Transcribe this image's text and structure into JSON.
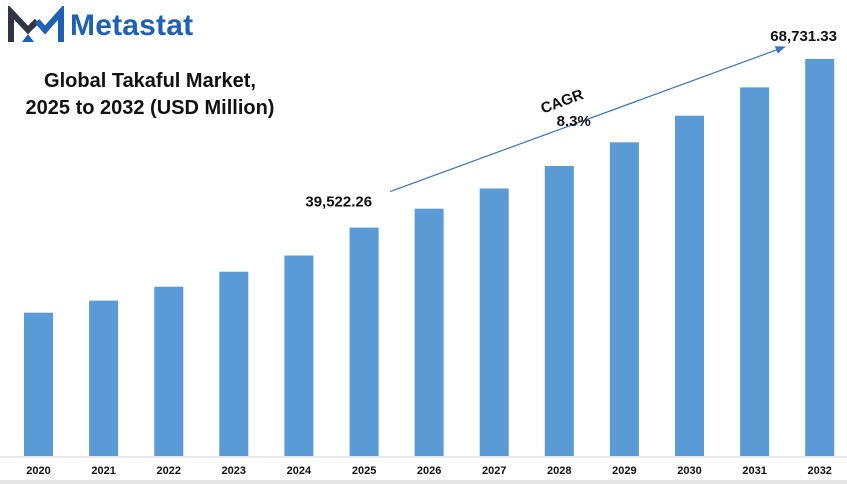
{
  "brand": {
    "name": "Metastat",
    "logo_icon": "metastat-logo-icon",
    "colors": {
      "dark": "#2f3542",
      "blue": "#1f5fb4"
    }
  },
  "chart_data": {
    "type": "bar",
    "title_lines": [
      "Global Takaful Market,",
      "2025 to 2032 (USD Million)"
    ],
    "categories": [
      "2020",
      "2021",
      "2022",
      "2023",
      "2024",
      "2025",
      "2026",
      "2027",
      "2028",
      "2029",
      "2030",
      "2031",
      "2032"
    ],
    "series": [
      {
        "values": [
          24800,
          26900,
          29300,
          31900,
          34700,
          39522.26,
          42800,
          46300,
          50200,
          54300,
          58900,
          63800,
          68731.33
        ]
      }
    ],
    "ylim": [
      0,
      72000
    ],
    "grid": false,
    "bar_color": "#5b9bd5",
    "data_labels": [
      {
        "category": "2025",
        "text": "39,522.26"
      },
      {
        "category": "2032",
        "text": "68,731.33"
      }
    ],
    "annotation": {
      "label": "CAGR",
      "value": "8.3%",
      "from_category": "2025",
      "to_category": "2032",
      "arrow_color": "#3a72b8"
    }
  }
}
